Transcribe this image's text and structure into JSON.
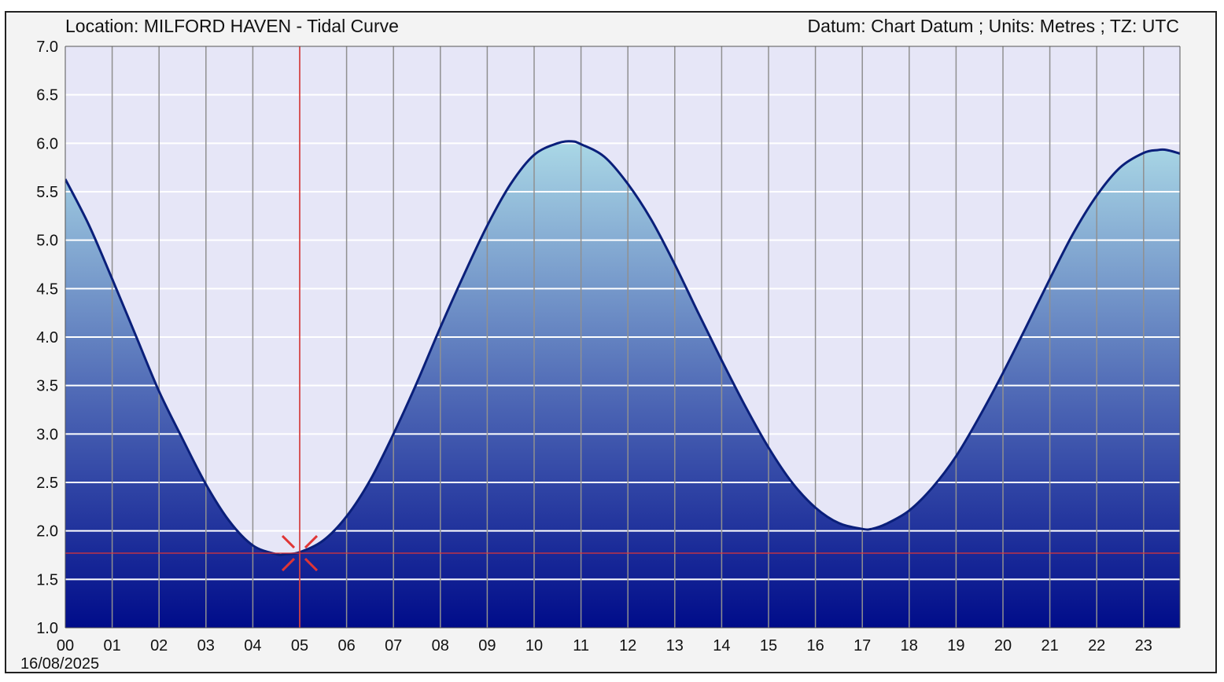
{
  "header": {
    "location": "Location: MILFORD HAVEN - Tidal Curve",
    "datum": "Datum: Chart Datum ; Units: Metres ; TZ: UTC"
  },
  "date_label": "16/08/2025",
  "colors": {
    "plot_background": "#e6e6f7",
    "curve": "#0a1f7a",
    "fill_top": "#aad8e6",
    "fill_bottom": "#000c8a",
    "marker": "#e03535",
    "grid_horizontal": "#ffffff",
    "grid_vertical": "#909090"
  },
  "chart_data": {
    "type": "area",
    "title": "Location: MILFORD HAVEN - Tidal Curve",
    "xlabel": "",
    "ylabel": "",
    "x_unit": "hour (UTC)",
    "x_ticks": [
      "00",
      "01",
      "02",
      "03",
      "04",
      "05",
      "06",
      "07",
      "08",
      "09",
      "10",
      "11",
      "12",
      "13",
      "14",
      "15",
      "16",
      "17",
      "18",
      "19",
      "20",
      "21",
      "22",
      "23"
    ],
    "y_ticks": [
      "1.0",
      "1.5",
      "2.0",
      "2.5",
      "3.0",
      "3.5",
      "4.0",
      "4.5",
      "5.0",
      "5.5",
      "6.0",
      "6.5",
      "7.0"
    ],
    "xlim": [
      0,
      23.8
    ],
    "ylim": [
      1.0,
      7.0
    ],
    "grid": true,
    "series": [
      {
        "x": [
          0,
          0.5,
          1,
          1.5,
          2,
          2.5,
          3,
          3.5,
          4,
          4.5,
          4.7,
          5,
          5.5,
          6,
          6.5,
          7,
          7.5,
          8,
          8.5,
          9,
          9.5,
          10,
          10.5,
          10.8,
          11,
          11.5,
          12,
          12.5,
          13,
          13.5,
          14,
          14.5,
          15,
          15.5,
          16,
          16.5,
          17,
          17.2,
          17.5,
          18,
          18.5,
          19,
          19.5,
          20,
          20.5,
          21,
          21.5,
          22,
          22.5,
          23,
          23.3,
          23.5,
          23.8
        ],
        "y": [
          5.63,
          5.16,
          4.6,
          4.02,
          3.44,
          2.95,
          2.48,
          2.1,
          1.85,
          1.76,
          1.76,
          1.78,
          1.9,
          2.15,
          2.52,
          3.0,
          3.53,
          4.1,
          4.64,
          5.15,
          5.58,
          5.88,
          6.0,
          6.02,
          5.99,
          5.86,
          5.58,
          5.21,
          4.75,
          4.25,
          3.76,
          3.29,
          2.86,
          2.5,
          2.24,
          2.08,
          2.02,
          2.02,
          2.07,
          2.21,
          2.45,
          2.77,
          3.18,
          3.63,
          4.11,
          4.6,
          5.07,
          5.46,
          5.75,
          5.9,
          5.93,
          5.93,
          5.89
        ]
      }
    ],
    "marker": {
      "time": 5.0,
      "height": 1.77
    }
  }
}
